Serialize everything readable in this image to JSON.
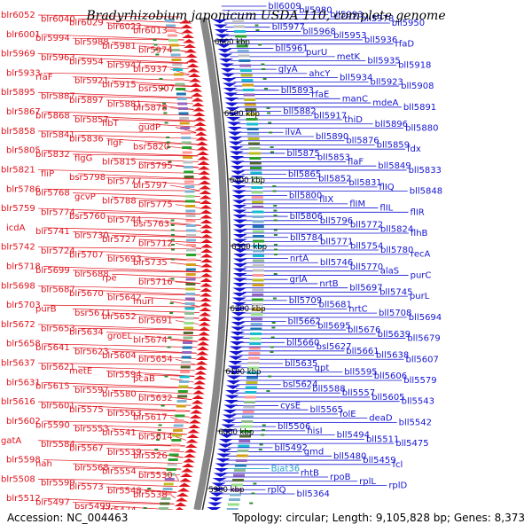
{
  "title": "Bradyrhizobium japonicum USDA 110, complete genome",
  "footer": {
    "accession": "Accession: NC_004463",
    "info": "Topology: circular; Length: 9,105,828 bp; Genes: 8,373"
  },
  "scale_labels": [
    "6600 kbp",
    "6500 kbp",
    "6400 kbp",
    "6300 kbp",
    "6200 kbp",
    "6100 kbp",
    "6000 kbp",
    "5900 kbp"
  ],
  "colors": {
    "left_genes": "#e0141e",
    "right_genes": "#1414d2",
    "trna_gene": "#1ea0d2",
    "backbone": "#888888"
  },
  "left_genes": [
    "blr6052",
    "blr6040",
    "blr6029",
    "blr6022",
    "blr6013",
    "blr6001",
    "blr5994",
    "blr5988",
    "blr5981",
    "blr5974",
    "blr5969",
    "blr5963",
    "blr5954",
    "blr5947",
    "blr5937",
    "blr5933",
    "rfaF",
    "blr5921",
    "blr5915",
    "bsr5907",
    "blr5895",
    "blr5887",
    "blr5897",
    "blr5881",
    "blr5878",
    "blr5867",
    "blr5868",
    "blr5857",
    "flbT",
    "gudP",
    "blr5858",
    "blr5841",
    "blr5836",
    "flgF",
    "bsr5820",
    "blr5805",
    "blr5832",
    "flgG",
    "blr5815",
    "blr5795",
    "blr5821",
    "fliP",
    "bsr5798",
    "blr5777",
    "blr5797",
    "blr5786",
    "blr5768",
    "gcvP",
    "blr5788",
    "blr5775",
    "blr5759",
    "blr5774",
    "bsr5760",
    "blr5744",
    "bsr5763",
    "icdA",
    "blr5741",
    "blr5730",
    "blr5727",
    "blr5712",
    "blr5742",
    "blr5724",
    "blr5707",
    "blr5693",
    "blr5735",
    "blr5718",
    "blr5699",
    "blr5688",
    "rpe",
    "blr5716",
    "blr5698",
    "blr5687",
    "blr5670",
    "blr5642",
    "murI",
    "blr5703",
    "purB",
    "bsr5671",
    "blr5652",
    "blr5691",
    "blr5672",
    "blr5653",
    "blr5634",
    "groEL",
    "blr5674",
    "blr5658",
    "blr5641",
    "blr5623",
    "blr5604",
    "blr5654",
    "blr5637",
    "blr5621",
    "metE",
    "blr5594",
    "pcaB",
    "blr5631",
    "blr5615",
    "blr5597",
    "blr5580",
    "blr5632",
    "blr5616",
    "blr5601",
    "blr5575",
    "blr5563",
    "blr5617",
    "blr5602",
    "blr5590",
    "blr5553",
    "blr5541",
    "blr5614",
    "gatA",
    "blr5584",
    "blr5567",
    "blr5539",
    "blr5526",
    "blr5598",
    "nah",
    "blr5568",
    "blr5554",
    "blr5530",
    "blr5508",
    "blr5599",
    "blr5573",
    "blr5548",
    "blr5538",
    "blr5512",
    "blr5497",
    "bsr5499",
    "blr5474",
    "blr5502",
    "bsr5487"
  ],
  "right_genes": [
    "bll6009",
    "bll5980",
    "bll5993",
    "bll5978",
    "bll5950",
    "bll5977",
    "bll5968",
    "bll5953",
    "bll5936",
    "rfaD",
    "bll5961",
    "purU",
    "metK",
    "bll5935",
    "bll5918",
    "glyA",
    "ahcY",
    "bll5934",
    "bll5923",
    "bll5908",
    "bll5893",
    "rfaE",
    "manC",
    "mdeA",
    "bll5891",
    "bll5882",
    "bll5917",
    "thiD",
    "bll5896",
    "bll5880",
    "ilvA",
    "bll5890",
    "bll5876",
    "bll5859",
    "fdx",
    "bll5875",
    "bll5853",
    "flaF",
    "bll5849",
    "bll5833",
    "bll5865",
    "bll5852",
    "bll5831",
    "flIQ",
    "bll5848",
    "bll5800",
    "flIX",
    "flIM",
    "flIL",
    "flIR",
    "bll5806",
    "bll5796",
    "bll5772",
    "bll5824",
    "flhB",
    "bll5784",
    "bll5771",
    "bll5754",
    "bll5780",
    "recA",
    "nrtA",
    "bll5746",
    "bll5770",
    "alaS",
    "purC",
    "grlA",
    "nrtB",
    "bll5697",
    "bll5745",
    "purL",
    "bll5709",
    "bll5681",
    "nrtC",
    "bll5708",
    "bll5694",
    "bll5662",
    "bll5695",
    "bll5676",
    "bll5639",
    "bll5679",
    "bll5660",
    "bsl5627",
    "bll5661",
    "bll5638",
    "bll5607",
    "bll5635",
    "gpt",
    "bll5595",
    "bll5606",
    "bll5579",
    "bsl5624",
    "bll5588",
    "bll5557",
    "bll5605",
    "bll5543",
    "cysE",
    "bll5565",
    "folE",
    "deaD",
    "bll5542",
    "bll5506",
    "hisI",
    "bll5494",
    "bll5511",
    "bll5475",
    "bll5492",
    "gmd",
    "bll5480",
    "bll5459",
    "fcl",
    "Bjat36",
    "rhtB",
    "rpoB",
    "rplL",
    "rplD",
    "rplQ",
    "bll5364"
  ]
}
